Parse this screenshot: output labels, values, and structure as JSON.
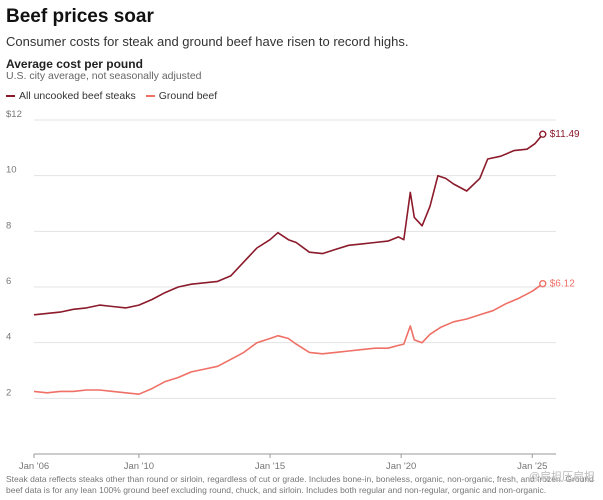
{
  "header": {
    "title": "Beef prices soar",
    "subtitle": "Consumer costs for steak and ground beef have risen to record highs."
  },
  "chart_meta": {
    "title": "Average cost per pound",
    "subtitle": "U.S. city average, not seasonally adjusted"
  },
  "footnote": "Steak data reflects steaks other than round or sirloin, regardless of cut or grade. Includes bone-in, boneless, organic, non-organic, fresh, and frozen. Ground beef data is for any lean 100% ground beef excluding round, chuck, and sirloin. Includes both regular and non-regular, organic and non-organic.",
  "watermark": "@扁担压扁担",
  "colors": {
    "steak": "#8b1a2b",
    "ground": "#ef7066"
  },
  "chart_data": {
    "type": "line",
    "title": "Average cost per pound",
    "subtitle": "U.S. city average, not seasonally adjusted",
    "xlabel": "",
    "ylabel": "",
    "xlim": [
      2006.0,
      2025.6
    ],
    "ylim": [
      0,
      12
    ],
    "y_ticks": [
      {
        "value": 12,
        "label": "$12"
      },
      {
        "value": 10,
        "label": "10"
      },
      {
        "value": 8,
        "label": "8"
      },
      {
        "value": 6,
        "label": "6"
      },
      {
        "value": 4,
        "label": "4"
      },
      {
        "value": 2,
        "label": "2"
      }
    ],
    "x_ticks": [
      {
        "value": 2006,
        "label": "Jan '06"
      },
      {
        "value": 2010,
        "label": "Jan '10"
      },
      {
        "value": 2015,
        "label": "Jan '15"
      },
      {
        "value": 2020,
        "label": "Jan '20"
      },
      {
        "value": 2025,
        "label": "Jan '25"
      }
    ],
    "grid": "horizontal",
    "legend_placement": "top-left",
    "series": [
      {
        "name": "All uncooked beef steaks",
        "color": "#8b1a2b",
        "end_label": "$11.49",
        "points": [
          [
            2006.0,
            5.0
          ],
          [
            2006.5,
            5.05
          ],
          [
            2007.0,
            5.1
          ],
          [
            2007.5,
            5.2
          ],
          [
            2008.0,
            5.25
          ],
          [
            2008.5,
            5.35
          ],
          [
            2009.0,
            5.3
          ],
          [
            2009.5,
            5.25
          ],
          [
            2010.0,
            5.35
          ],
          [
            2010.5,
            5.55
          ],
          [
            2011.0,
            5.8
          ],
          [
            2011.5,
            6.0
          ],
          [
            2012.0,
            6.1
          ],
          [
            2012.5,
            6.15
          ],
          [
            2013.0,
            6.2
          ],
          [
            2013.5,
            6.4
          ],
          [
            2014.0,
            6.9
          ],
          [
            2014.5,
            7.4
          ],
          [
            2015.0,
            7.7
          ],
          [
            2015.3,
            7.95
          ],
          [
            2015.7,
            7.7
          ],
          [
            2016.0,
            7.6
          ],
          [
            2016.5,
            7.25
          ],
          [
            2017.0,
            7.2
          ],
          [
            2017.5,
            7.35
          ],
          [
            2018.0,
            7.5
          ],
          [
            2018.5,
            7.55
          ],
          [
            2019.0,
            7.6
          ],
          [
            2019.5,
            7.65
          ],
          [
            2019.9,
            7.8
          ],
          [
            2020.1,
            7.7
          ],
          [
            2020.35,
            9.4
          ],
          [
            2020.5,
            8.5
          ],
          [
            2020.8,
            8.2
          ],
          [
            2021.1,
            8.9
          ],
          [
            2021.4,
            10.0
          ],
          [
            2021.7,
            9.9
          ],
          [
            2022.0,
            9.7
          ],
          [
            2022.5,
            9.45
          ],
          [
            2023.0,
            9.9
          ],
          [
            2023.3,
            10.6
          ],
          [
            2023.8,
            10.7
          ],
          [
            2024.3,
            10.9
          ],
          [
            2024.8,
            10.95
          ],
          [
            2025.1,
            11.15
          ],
          [
            2025.4,
            11.49
          ]
        ]
      },
      {
        "name": "Ground beef",
        "color": "#ef7066",
        "end_label": "$6.12",
        "points": [
          [
            2006.0,
            2.25
          ],
          [
            2006.5,
            2.2
          ],
          [
            2007.0,
            2.25
          ],
          [
            2007.5,
            2.25
          ],
          [
            2008.0,
            2.3
          ],
          [
            2008.5,
            2.3
          ],
          [
            2009.0,
            2.25
          ],
          [
            2009.5,
            2.2
          ],
          [
            2010.0,
            2.15
          ],
          [
            2010.5,
            2.35
          ],
          [
            2011.0,
            2.6
          ],
          [
            2011.5,
            2.75
          ],
          [
            2012.0,
            2.95
          ],
          [
            2012.5,
            3.05
          ],
          [
            2013.0,
            3.15
          ],
          [
            2013.5,
            3.4
          ],
          [
            2014.0,
            3.65
          ],
          [
            2014.5,
            4.0
          ],
          [
            2015.0,
            4.15
          ],
          [
            2015.3,
            4.25
          ],
          [
            2015.7,
            4.15
          ],
          [
            2016.0,
            3.95
          ],
          [
            2016.5,
            3.65
          ],
          [
            2017.0,
            3.6
          ],
          [
            2017.5,
            3.65
          ],
          [
            2018.0,
            3.7
          ],
          [
            2018.5,
            3.75
          ],
          [
            2019.0,
            3.8
          ],
          [
            2019.5,
            3.8
          ],
          [
            2019.9,
            3.9
          ],
          [
            2020.1,
            3.95
          ],
          [
            2020.35,
            4.6
          ],
          [
            2020.5,
            4.1
          ],
          [
            2020.8,
            4.0
          ],
          [
            2021.1,
            4.3
          ],
          [
            2021.5,
            4.55
          ],
          [
            2022.0,
            4.75
          ],
          [
            2022.5,
            4.85
          ],
          [
            2023.0,
            5.0
          ],
          [
            2023.5,
            5.15
          ],
          [
            2024.0,
            5.4
          ],
          [
            2024.5,
            5.6
          ],
          [
            2025.0,
            5.85
          ],
          [
            2025.4,
            6.12
          ]
        ]
      }
    ]
  }
}
